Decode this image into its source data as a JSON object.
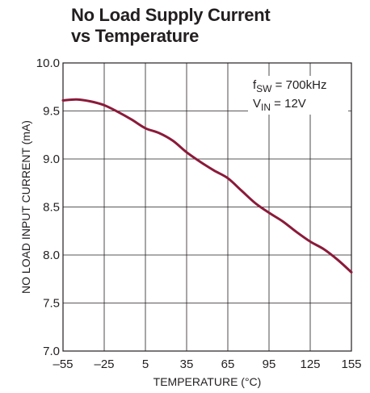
{
  "chart_data": {
    "type": "line",
    "title": [
      "No Load Supply Current",
      "vs Temperature"
    ],
    "xlabel": "TEMPERATURE (°C)",
    "ylabel": "NO LOAD INPUT CURRENT (mA)",
    "xlim": [
      -55,
      155
    ],
    "ylim": [
      7.0,
      10.0
    ],
    "xticks": [
      -55,
      -25,
      5,
      35,
      65,
      95,
      125,
      155
    ],
    "xtick_labels": [
      "–55",
      "–25",
      "5",
      "35",
      "65",
      "95",
      "125",
      "155"
    ],
    "yticks": [
      7.0,
      7.5,
      8.0,
      8.5,
      9.0,
      9.5,
      10.0
    ],
    "ytick_labels": [
      "7.0",
      "7.5",
      "8.0",
      "8.5",
      "9.0",
      "9.5",
      "10.0"
    ],
    "grid": true,
    "annotations": [
      {
        "main": "f",
        "sub": "SW",
        "rest": " = 700kHz"
      },
      {
        "main": "V",
        "sub": "IN",
        "rest": " = 12V"
      }
    ],
    "series": [
      {
        "color": "#8b1a3a",
        "x": [
          -55,
          -45,
          -35,
          -25,
          -15,
          -5,
          5,
          15,
          25,
          35,
          45,
          55,
          65,
          75,
          85,
          95,
          105,
          115,
          125,
          135,
          145,
          155
        ],
        "y": [
          9.61,
          9.62,
          9.6,
          9.56,
          9.49,
          9.41,
          9.32,
          9.27,
          9.19,
          9.07,
          8.97,
          8.88,
          8.8,
          8.67,
          8.54,
          8.44,
          8.35,
          8.24,
          8.14,
          8.06,
          7.95,
          7.82
        ]
      }
    ]
  }
}
